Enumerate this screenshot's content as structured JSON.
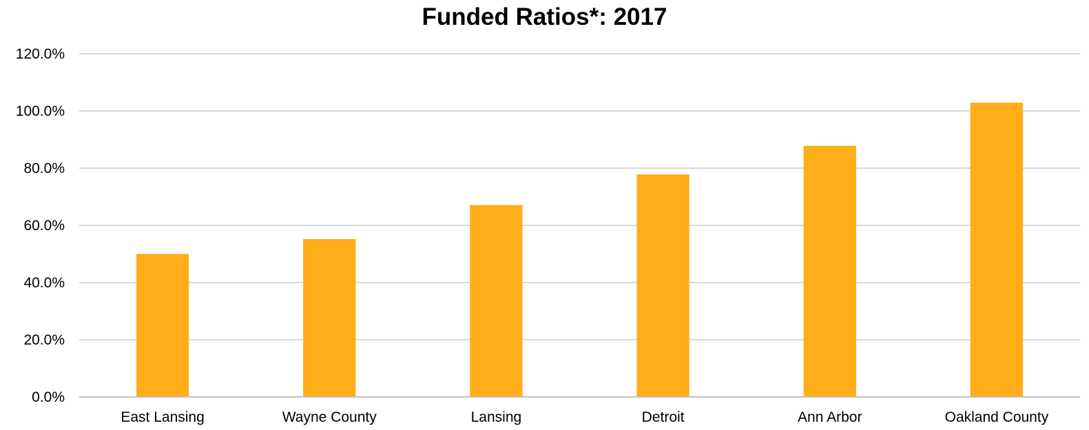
{
  "chart_data": {
    "type": "bar",
    "title": "Funded Ratios*: 2017",
    "categories": [
      "East Lansing",
      "Wayne County",
      "Lansing",
      "Detroit",
      "Ann Arbor",
      "Oakland County"
    ],
    "values": [
      50.0,
      55.2,
      67.1,
      77.8,
      87.8,
      102.9
    ],
    "y_ticks": [
      "0.0%",
      "20.0%",
      "40.0%",
      "60.0%",
      "80.0%",
      "100.0%",
      "120.0%"
    ],
    "ylim": [
      0,
      120
    ],
    "value_unit": "%",
    "grid": true,
    "legend": "none",
    "colors": {
      "bar": "#FFAD19",
      "grid": "#D9D9D9",
      "axis": "#BFBFBF"
    }
  }
}
